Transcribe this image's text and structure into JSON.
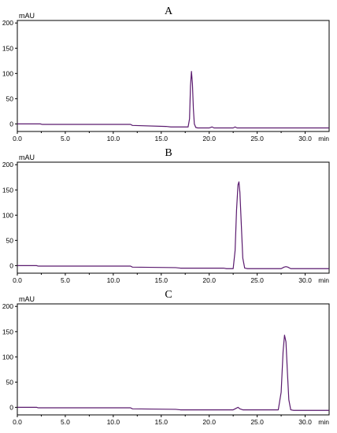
{
  "chart_data": [
    {
      "type": "line",
      "panel_label": "A",
      "ylabel": "mAU",
      "xunit": "min",
      "xlim": [
        0,
        32.5
      ],
      "ylim": [
        -15,
        205
      ],
      "xticks": [
        0.0,
        5.0,
        10.0,
        15.0,
        20.0,
        25.0,
        30.0
      ],
      "xtick_labels": [
        "0.0",
        "5.0",
        "10.0",
        "15.0",
        "20.0",
        "25.0",
        "30.0"
      ],
      "yticks": [
        0,
        50,
        100,
        150,
        200
      ],
      "ytick_labels": [
        "0",
        "50",
        "100",
        "150",
        "200"
      ],
      "series": [
        {
          "color": "#5a1a6e",
          "x": [
            0,
            2.4,
            2.6,
            11.8,
            12.0,
            15.5,
            16.0,
            17.8,
            17.95,
            18.05,
            18.15,
            18.25,
            18.35,
            18.45,
            18.6,
            18.8,
            20.0,
            20.3,
            20.5,
            22.5,
            22.7,
            22.9,
            23.1,
            25.0,
            28.0,
            32.5
          ],
          "y": [
            0,
            0,
            -1,
            -1,
            -3,
            -5,
            -6,
            -6,
            10,
            75,
            104,
            80,
            30,
            0,
            -7,
            -8,
            -8,
            -6,
            -8,
            -8,
            -6,
            -8,
            -8,
            -8,
            -8,
            -8
          ]
        }
      ]
    },
    {
      "type": "line",
      "panel_label": "B",
      "ylabel": "mAU",
      "xunit": "min",
      "xlim": [
        0,
        32.5
      ],
      "ylim": [
        -15,
        205
      ],
      "xticks": [
        0.0,
        5.0,
        10.0,
        15.0,
        20.0,
        25.0,
        30.0
      ],
      "xtick_labels": [
        "0.0",
        "5.0",
        "10.0",
        "15.0",
        "20.0",
        "25.0",
        "30.0"
      ],
      "yticks": [
        0,
        50,
        100,
        150,
        200
      ],
      "ytick_labels": [
        "0",
        "50",
        "100",
        "150",
        "200"
      ],
      "series": [
        {
          "color": "#5a1a6e",
          "x": [
            0,
            2.0,
            2.2,
            11.8,
            12.0,
            16.5,
            17.0,
            21.5,
            21.8,
            22.5,
            22.7,
            22.85,
            23.0,
            23.1,
            23.2,
            23.35,
            23.5,
            23.7,
            24.0,
            27.5,
            27.8,
            28.0,
            28.2,
            28.5,
            32.5
          ],
          "y": [
            0,
            0,
            -1,
            -1,
            -3,
            -4,
            -5,
            -5,
            -6,
            -6,
            30,
            110,
            160,
            166,
            145,
            80,
            15,
            -5,
            -6,
            -6,
            -3,
            -2,
            -3,
            -6,
            -6
          ]
        }
      ]
    },
    {
      "type": "line",
      "panel_label": "C",
      "ylabel": "mAU",
      "xunit": "min",
      "xlim": [
        0,
        32.5
      ],
      "ylim": [
        -15,
        205
      ],
      "xticks": [
        0.0,
        5.0,
        10.0,
        15.0,
        20.0,
        25.0,
        30.0
      ],
      "xtick_labels": [
        "0.0",
        "5.0",
        "10.0",
        "15.0",
        "20.0",
        "25.0",
        "30.0"
      ],
      "yticks": [
        0,
        50,
        100,
        150,
        200
      ],
      "ytick_labels": [
        "0",
        "50",
        "100",
        "150",
        "200"
      ],
      "series": [
        {
          "color": "#5a1a6e",
          "x": [
            0,
            2.0,
            2.2,
            11.8,
            12.0,
            16.5,
            17.0,
            21.5,
            22.5,
            22.8,
            23.0,
            23.2,
            23.5,
            27.2,
            27.5,
            27.7,
            27.85,
            28.0,
            28.15,
            28.3,
            28.5,
            28.8,
            32.5
          ],
          "y": [
            0,
            0,
            -1,
            -1,
            -3,
            -4,
            -5,
            -5,
            -5,
            -2,
            0,
            -3,
            -5,
            -5,
            30,
            110,
            143,
            130,
            70,
            15,
            -5,
            -6,
            -6
          ]
        }
      ]
    }
  ]
}
